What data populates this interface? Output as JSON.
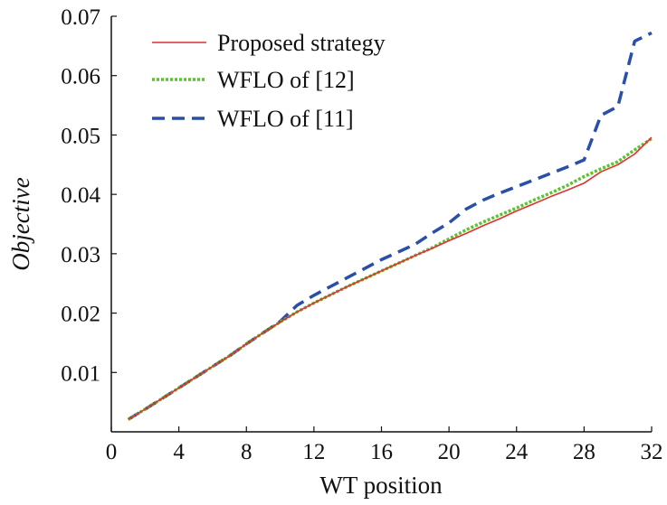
{
  "chart_data": {
    "type": "line",
    "xlabel": "WT position",
    "ylabel": "Objective",
    "xlim": [
      0,
      32
    ],
    "ylim": [
      0,
      0.07
    ],
    "xticks": [
      0,
      4,
      8,
      12,
      16,
      20,
      24,
      28,
      32
    ],
    "yticks": [
      0.01,
      0.02,
      0.03,
      0.04,
      0.05,
      0.06,
      0.07
    ],
    "xtick_labels": [
      "0",
      "4",
      "8",
      "12",
      "16",
      "20",
      "24",
      "28",
      "32"
    ],
    "ytick_labels": [
      "0.01",
      "0.02",
      "0.03",
      "0.04",
      "0.05",
      "0.06",
      "0.07"
    ],
    "grid": false,
    "legend_position": "top-left",
    "x": [
      1,
      2,
      3,
      4,
      5,
      6,
      7,
      8,
      9,
      10,
      11,
      12,
      13,
      14,
      15,
      16,
      17,
      18,
      19,
      20,
      21,
      22,
      23,
      24,
      25,
      26,
      27,
      28,
      29,
      30,
      31,
      32
    ],
    "series": [
      {
        "name": "Proposed strategy",
        "color": "#e03030",
        "style": "solid",
        "values": [
          0.0021,
          0.0038,
          0.0056,
          0.0074,
          0.0092,
          0.011,
          0.0128,
          0.0148,
          0.0167,
          0.0185,
          0.0202,
          0.0217,
          0.0231,
          0.0245,
          0.0258,
          0.0271,
          0.0284,
          0.0297,
          0.0309,
          0.0322,
          0.0334,
          0.0347,
          0.0359,
          0.0372,
          0.0384,
          0.0396,
          0.0407,
          0.0419,
          0.0438,
          0.045,
          0.0468,
          0.0496
        ]
      },
      {
        "name": "WFLO of [12]",
        "color": "#5cc234",
        "style": "dotted",
        "values": [
          0.0021,
          0.0038,
          0.0056,
          0.0074,
          0.0092,
          0.011,
          0.0128,
          0.0148,
          0.0167,
          0.0185,
          0.0202,
          0.0217,
          0.0231,
          0.0245,
          0.0258,
          0.0271,
          0.0284,
          0.0297,
          0.031,
          0.0325,
          0.034,
          0.0353,
          0.0365,
          0.0377,
          0.039,
          0.0402,
          0.0415,
          0.043,
          0.0443,
          0.0455,
          0.0475,
          0.0494
        ]
      },
      {
        "name": "WFLO of [11]",
        "color": "#2a4fa8",
        "style": "dashed",
        "values": [
          0.0021,
          0.0038,
          0.0056,
          0.0074,
          0.0092,
          0.011,
          0.0128,
          0.0148,
          0.0167,
          0.0186,
          0.0213,
          0.023,
          0.0245,
          0.026,
          0.0275,
          0.029,
          0.0303,
          0.0316,
          0.0335,
          0.0352,
          0.0375,
          0.039,
          0.0402,
          0.0413,
          0.0424,
          0.0435,
          0.0446,
          0.0458,
          0.0533,
          0.0548,
          0.0658,
          0.0672
        ]
      }
    ]
  }
}
